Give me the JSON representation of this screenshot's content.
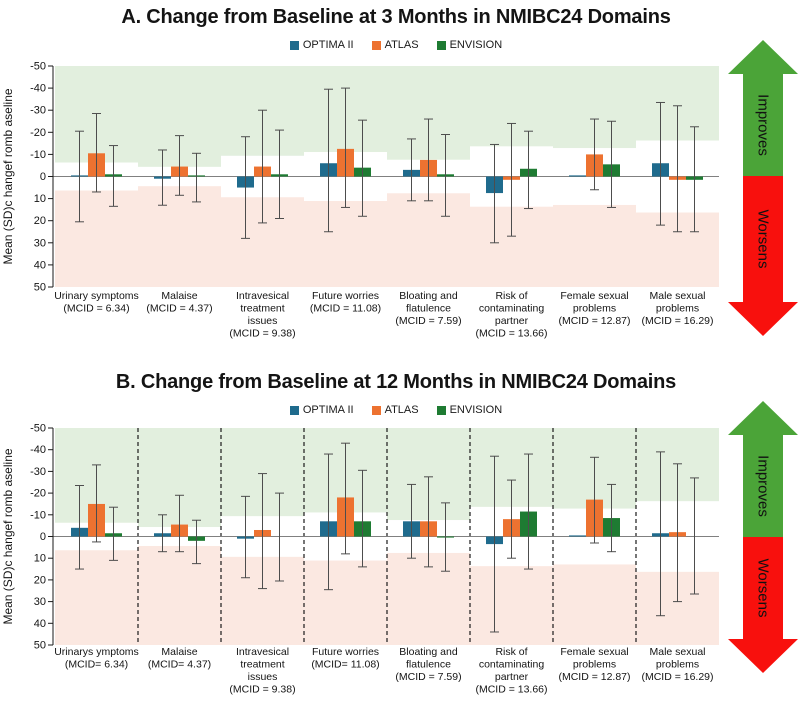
{
  "annotations": {
    "improves": "Improves",
    "worsens": "Worsens"
  },
  "colors": {
    "optima_ii": "#1F6B8D",
    "atlas": "#ED7230",
    "envision": "#1E7B32",
    "improve_band": "#E2EFDE",
    "worsen_band": "#FBE8E1",
    "arrow_green": "#4BA438",
    "arrow_red": "#F8100D",
    "zero_line": "#808080",
    "whisker": "#4D4D4D",
    "axis": "#1A1A1A",
    "separator": "#1A1A1A",
    "text": "#141414"
  },
  "chart_data": [
    {
      "panel": "A",
      "type": "bar",
      "title": "A. Change from Baseline at 3 Months in NMIBC24 Domains",
      "ylabel": "Mean (SD)c hangef romb aseline",
      "y_axis": {
        "min": -50,
        "max": 50,
        "inverted": true,
        "ticks": [
          -50,
          -40,
          -30,
          -20,
          -10,
          0,
          10,
          20,
          30,
          40,
          50
        ]
      },
      "separators": false,
      "legend_position": "top",
      "grid": false,
      "categories": [
        {
          "label_lines": [
            "Urinary symptoms",
            "(MCID = 6.34)"
          ],
          "mcid": 6.34
        },
        {
          "label_lines": [
            "Malaise",
            "(MCID = 4.37)"
          ],
          "mcid": 4.37
        },
        {
          "label_lines": [
            "Intravesical",
            "treatment",
            "issues",
            "(MCID = 9.38)"
          ],
          "mcid": 9.38
        },
        {
          "label_lines": [
            "Future worries",
            "(MCID = 11.08)"
          ],
          "mcid": 11.08
        },
        {
          "label_lines": [
            "Bloating and",
            "flatulence",
            "(MCID = 7.59)"
          ],
          "mcid": 7.59
        },
        {
          "label_lines": [
            "Risk of",
            "contaminating",
            "partner",
            "(MCID = 13.66)"
          ],
          "mcid": 13.66
        },
        {
          "label_lines": [
            "Female sexual",
            "problems",
            "(MCID = 12.87)"
          ],
          "mcid": 12.87
        },
        {
          "label_lines": [
            "Male sexual",
            "problems",
            "(MCID = 16.29)"
          ],
          "mcid": 16.29
        }
      ],
      "series": [
        {
          "name": "OPTIMA II",
          "color": "#1F6B8D",
          "values": [
            -0.5,
            1,
            5,
            -6,
            -3,
            7.5,
            -0.5,
            -6
          ],
          "whisker_low": [
            -20.5,
            -12,
            -18,
            -39.5,
            -17,
            -14.5,
            null,
            -33.5
          ],
          "whisker_high": [
            20.5,
            13,
            28,
            25,
            11,
            30,
            null,
            22
          ]
        },
        {
          "name": "ATLAS",
          "color": "#ED7230",
          "values": [
            -10.5,
            -4.5,
            -4.5,
            -12.5,
            -7.5,
            1.5,
            -10,
            1.5
          ],
          "whisker_low": [
            -28.5,
            -18.5,
            -30,
            -40,
            -26,
            -24,
            -26,
            -32
          ],
          "whisker_high": [
            7,
            8.5,
            21,
            14,
            11,
            27,
            6,
            25
          ]
        },
        {
          "name": "ENVISION",
          "color": "#1E7B32",
          "values": [
            -1,
            -0.5,
            -1,
            -4,
            -1,
            -3.5,
            -5.5,
            1.5
          ],
          "whisker_low": [
            -14,
            -10.5,
            -21,
            -25.5,
            -19,
            -20.5,
            -25,
            -22.5
          ],
          "whisker_high": [
            13.5,
            11.5,
            19,
            18,
            18,
            14.5,
            14,
            25
          ]
        }
      ]
    },
    {
      "panel": "B",
      "type": "bar",
      "title": "B. Change from Baseline at 12 Months in NMIBC24 Domains",
      "ylabel": "Mean (SD)c hangef romb aseline",
      "y_axis": {
        "min": -50,
        "max": 50,
        "inverted": true,
        "ticks": [
          -50,
          -40,
          -30,
          -20,
          -10,
          0,
          10,
          20,
          30,
          40,
          50
        ]
      },
      "separators": true,
      "legend_position": "top",
      "grid": false,
      "categories": [
        {
          "label_lines": [
            "Urinarys ymptoms",
            "(MCID= 6.34)"
          ],
          "mcid": 6.34
        },
        {
          "label_lines": [
            "Malaise",
            "(MCID= 4.37)"
          ],
          "mcid": 4.37
        },
        {
          "label_lines": [
            "Intravesical",
            "treatment",
            "issues",
            "(MCID = 9.38)"
          ],
          "mcid": 9.38
        },
        {
          "label_lines": [
            "Future worries",
            "(MCID= 11.08)"
          ],
          "mcid": 11.08
        },
        {
          "label_lines": [
            "Bloating and",
            "flatulence",
            "(MCID = 7.59)"
          ],
          "mcid": 7.59
        },
        {
          "label_lines": [
            "Risk of",
            "contaminating",
            "partner",
            "(MCID = 13.66)"
          ],
          "mcid": 13.66
        },
        {
          "label_lines": [
            "Female sexual",
            "problems",
            "(MCID = 12.87)"
          ],
          "mcid": 12.87
        },
        {
          "label_lines": [
            "Male sexual",
            "problems",
            "(MCID = 16.29)"
          ],
          "mcid": 16.29
        }
      ],
      "series": [
        {
          "name": "OPTIMA II",
          "color": "#1F6B8D",
          "values": [
            -4,
            -1.5,
            1,
            -7,
            -7,
            3.5,
            -0.5,
            -1.5
          ],
          "whisker_low": [
            -23.5,
            -10,
            -18.5,
            -38,
            -24,
            -37,
            null,
            -39
          ],
          "whisker_high": [
            15,
            7,
            19,
            24.5,
            10,
            44,
            null,
            36.5
          ]
        },
        {
          "name": "ATLAS",
          "color": "#ED7230",
          "values": [
            -15,
            -5.5,
            -3,
            -18,
            -7,
            -8,
            -17,
            -2
          ],
          "whisker_low": [
            -33,
            -19,
            -29,
            -43,
            -27.5,
            -26,
            -36.5,
            -33.5
          ],
          "whisker_high": [
            2.5,
            7,
            24,
            8,
            14,
            10,
            3,
            30
          ]
        },
        {
          "name": "ENVISION",
          "color": "#1E7B32",
          "values": [
            -1.5,
            2,
            0,
            -7,
            0.5,
            -11.5,
            -8.5,
            0
          ],
          "whisker_low": [
            -13.5,
            -7.5,
            -20,
            -30.5,
            -15.5,
            -38,
            -24,
            -27
          ],
          "whisker_high": [
            11,
            12.5,
            20.5,
            14,
            16,
            15,
            7,
            26.5
          ]
        }
      ]
    }
  ]
}
